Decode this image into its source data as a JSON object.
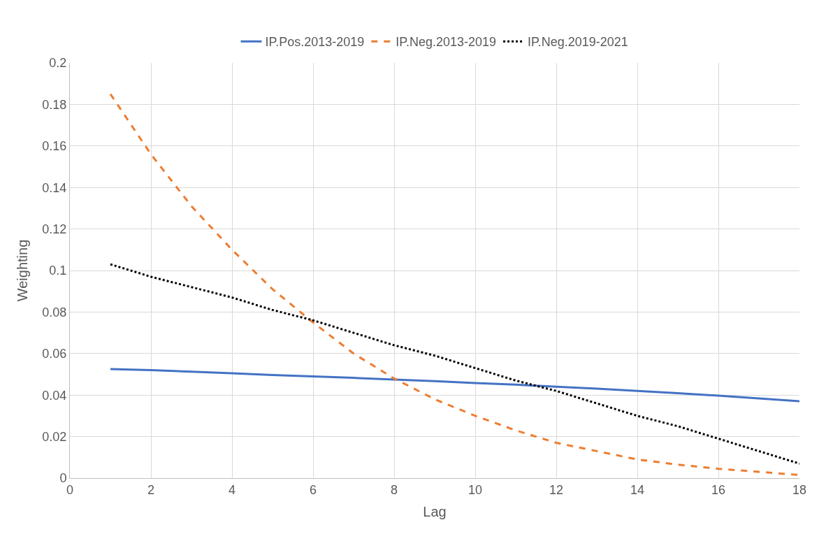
{
  "chart_data": {
    "type": "line",
    "xlabel": "Lag",
    "ylabel": "Weighting",
    "x": [
      1,
      2,
      3,
      4,
      5,
      6,
      7,
      8,
      9,
      10,
      11,
      12,
      13,
      14,
      15,
      16,
      17,
      18
    ],
    "series": [
      {
        "name": "IP.Pos.2013-2019",
        "color": "#4472c4",
        "line_style": "solid",
        "values": [
          0.0525,
          0.052,
          0.0513,
          0.0505,
          0.0497,
          0.049,
          0.0483,
          0.0475,
          0.0467,
          0.0458,
          0.045,
          0.044,
          0.0431,
          0.042,
          0.0409,
          0.0397,
          0.0384,
          0.037
        ]
      },
      {
        "name": "IP.Neg.2013-2019",
        "color": "#ed7d31",
        "line_style": "dashed",
        "values": [
          0.185,
          0.156,
          0.131,
          0.11,
          0.091,
          0.075,
          0.06,
          0.048,
          0.038,
          0.03,
          0.023,
          0.017,
          0.013,
          0.009,
          0.0065,
          0.0045,
          0.003,
          0.0015
        ]
      },
      {
        "name": "IP.Neg.2019-2021",
        "color": "#000000",
        "line_style": "dotted",
        "values": [
          0.103,
          0.097,
          0.092,
          0.087,
          0.081,
          0.076,
          0.07,
          0.064,
          0.059,
          0.053,
          0.047,
          0.042,
          0.036,
          0.03,
          0.025,
          0.019,
          0.013,
          0.007
        ]
      }
    ],
    "xlim": [
      0,
      18
    ],
    "xticks": [
      0,
      2,
      4,
      6,
      8,
      10,
      12,
      14,
      16,
      18
    ],
    "ylim": [
      0,
      0.2
    ],
    "yticks": [
      0,
      0.02,
      0.04,
      0.06,
      0.08,
      0.1,
      0.12,
      0.14,
      0.16,
      0.18,
      0.2
    ],
    "grid": true,
    "legend": "top",
    "marker": "none"
  }
}
